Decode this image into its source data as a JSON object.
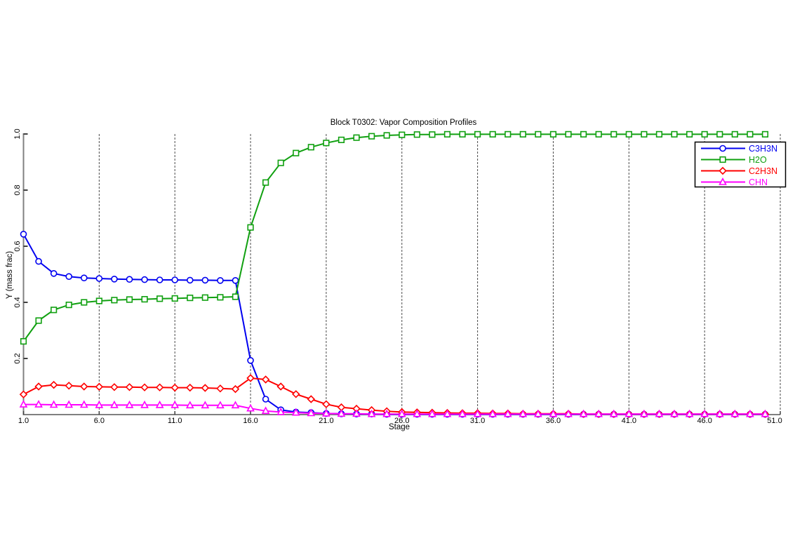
{
  "chart_data": {
    "type": "line",
    "title": "Block T0302: Vapor Composition Profiles",
    "xlabel": "Stage",
    "ylabel": "Y (mass frac)",
    "xlim": [
      1,
      51
    ],
    "ylim": [
      0,
      1
    ],
    "xticks": [
      1,
      6,
      11,
      16,
      21,
      26,
      31,
      36,
      41,
      46,
      51
    ],
    "xtick_labels": [
      "1.0",
      "6.0",
      "11.0",
      "16.0",
      "21.0",
      "26.0",
      "31.0",
      "36.0",
      "41.0",
      "46.0",
      "51.0"
    ],
    "yticks": [
      0.2,
      0.4,
      0.6,
      0.8,
      1.0
    ],
    "ytick_labels": [
      "0.2",
      "0.4",
      "0.6",
      "0.8",
      "1.0"
    ],
    "grid": "vertical-dashed-only",
    "legend_position": "top-right",
    "x": [
      1,
      2,
      3,
      4,
      5,
      6,
      7,
      8,
      9,
      10,
      11,
      12,
      13,
      14,
      15,
      16,
      17,
      18,
      19,
      20,
      21,
      22,
      23,
      24,
      25,
      26,
      27,
      28,
      29,
      30,
      31,
      32,
      33,
      34,
      35,
      36,
      37,
      38,
      39,
      40,
      41,
      42,
      43,
      44,
      45,
      46,
      47,
      48,
      49,
      50
    ],
    "series": [
      {
        "name": "C3H3N",
        "color": "#0000f0",
        "marker": "circle",
        "values": [
          0.643,
          0.546,
          0.503,
          0.492,
          0.487,
          0.485,
          0.483,
          0.482,
          0.481,
          0.48,
          0.48,
          0.479,
          0.479,
          0.478,
          0.478,
          0.193,
          0.055,
          0.017,
          0.009,
          0.007,
          0.004,
          0.003,
          0.002,
          0.002,
          0.001,
          0.001,
          0.001,
          0.001,
          0.001,
          0.001,
          0.001,
          0.001,
          0.001,
          0.001,
          0.001,
          0.001,
          0.001,
          0.001,
          0.001,
          0.001,
          0.001,
          0.001,
          0.001,
          0.001,
          0.001,
          0.001,
          0.001,
          0.001,
          0.001,
          0.001
        ]
      },
      {
        "name": "H2O",
        "color": "#10a010",
        "marker": "square",
        "values": [
          0.261,
          0.335,
          0.373,
          0.391,
          0.4,
          0.405,
          0.408,
          0.41,
          0.411,
          0.413,
          0.414,
          0.416,
          0.417,
          0.418,
          0.42,
          0.667,
          0.827,
          0.897,
          0.932,
          0.953,
          0.968,
          0.979,
          0.987,
          0.992,
          0.995,
          0.997,
          0.998,
          0.998,
          0.999,
          0.999,
          0.999,
          0.999,
          0.999,
          0.999,
          0.999,
          0.999,
          0.999,
          0.999,
          0.999,
          0.999,
          0.999,
          0.999,
          0.999,
          0.999,
          0.999,
          0.999,
          0.999,
          0.999,
          0.999,
          0.999
        ]
      },
      {
        "name": "C2H3N",
        "color": "#ff0000",
        "marker": "diamond",
        "values": [
          0.072,
          0.1,
          0.106,
          0.103,
          0.1,
          0.099,
          0.098,
          0.098,
          0.097,
          0.097,
          0.096,
          0.096,
          0.095,
          0.093,
          0.091,
          0.13,
          0.125,
          0.1,
          0.073,
          0.055,
          0.037,
          0.026,
          0.021,
          0.016,
          0.012,
          0.009,
          0.008,
          0.007,
          0.006,
          0.005,
          0.005,
          0.004,
          0.004,
          0.003,
          0.003,
          0.003,
          0.003,
          0.002,
          0.002,
          0.002,
          0.002,
          0.002,
          0.002,
          0.002,
          0.002,
          0.002,
          0.002,
          0.002,
          0.002,
          0.002
        ]
      },
      {
        "name": "CHN",
        "color": "#ff00ff",
        "marker": "triangle",
        "values": [
          0.036,
          0.036,
          0.035,
          0.035,
          0.035,
          0.034,
          0.034,
          0.034,
          0.034,
          0.034,
          0.034,
          0.033,
          0.033,
          0.033,
          0.033,
          0.022,
          0.013,
          0.009,
          0.007,
          0.005,
          0.004,
          0.003,
          0.003,
          0.002,
          0.002,
          0.002,
          0.002,
          0.002,
          0.002,
          0.002,
          0.002,
          0.002,
          0.002,
          0.002,
          0.002,
          0.002,
          0.002,
          0.002,
          0.002,
          0.002,
          0.002,
          0.002,
          0.002,
          0.002,
          0.002,
          0.002,
          0.002,
          0.002,
          0.002,
          0.002
        ]
      }
    ]
  }
}
